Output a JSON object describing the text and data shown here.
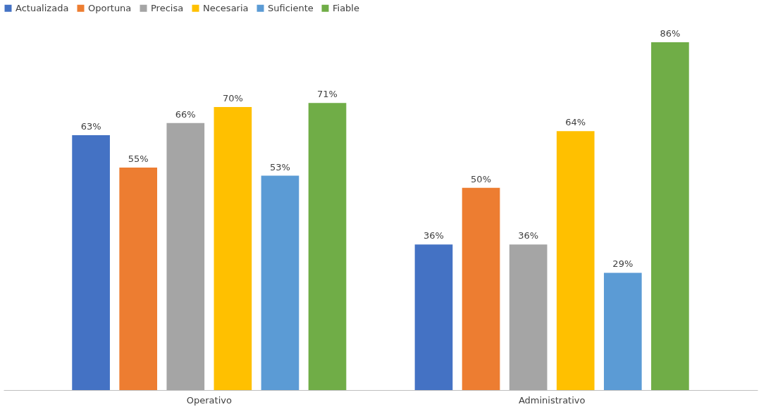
{
  "chart_data": {
    "type": "bar",
    "categories": [
      "Operativo",
      "Administrativo"
    ],
    "series": [
      {
        "name": "Actualizada",
        "color": "#4472c4",
        "values": [
          63,
          36
        ],
        "value_labels": [
          "63%",
          "36%"
        ]
      },
      {
        "name": "Oportuna",
        "color": "#ed7d31",
        "values": [
          55,
          50
        ],
        "value_labels": [
          "55%",
          "50%"
        ]
      },
      {
        "name": "Precisa",
        "color": "#a5a5a5",
        "values": [
          66,
          36
        ],
        "value_labels": [
          "66%",
          "36%"
        ]
      },
      {
        "name": "Necesaria",
        "color": "#ffc000",
        "values": [
          70,
          64
        ],
        "value_labels": [
          "70%",
          "64%"
        ]
      },
      {
        "name": "Suficiente",
        "color": "#5b9bd5",
        "values": [
          53,
          29
        ],
        "value_labels": [
          "53%",
          "29%"
        ]
      },
      {
        "name": "Fiable",
        "color": "#70ad47",
        "values": [
          71,
          86
        ],
        "value_labels": [
          "71%",
          "86%"
        ]
      }
    ],
    "legend": "top",
    "grid": false
  }
}
